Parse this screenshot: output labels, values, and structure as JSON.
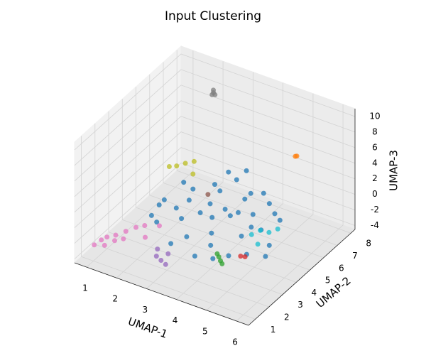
{
  "chart_data": {
    "type": "scatter3d",
    "title": "Input Clustering",
    "xlabel": "UMAP-1",
    "ylabel": "UMAP-2",
    "zlabel": "UMAP-3",
    "xlim": [
      0.6,
      6.4
    ],
    "ylim": [
      0.5,
      8.3
    ],
    "zlim": [
      -4.5,
      11
    ],
    "xticks": [
      1,
      2,
      3,
      4,
      5,
      6
    ],
    "yticks": [
      1,
      2,
      3,
      4,
      5,
      6,
      7,
      8
    ],
    "zticks": [
      -4,
      -2,
      0,
      2,
      4,
      6,
      8,
      10
    ],
    "grid": true,
    "series": [
      {
        "color": "#1f77b4",
        "x": [
          2.0,
          2.5,
          3.0,
          3.5,
          4.0,
          4.5,
          5.0,
          5.5,
          2.2,
          2.8,
          3.2,
          3.8,
          4.2,
          4.8,
          5.2,
          1.8,
          2.6,
          3.4,
          4.4,
          5.4,
          3.0,
          3.6,
          4.0,
          4.6,
          2.4,
          3.2,
          3.8,
          4.2,
          5.0,
          1.6,
          2.9,
          3.7,
          4.3,
          5.6,
          3.3,
          4.1,
          2.1,
          4.9,
          3.5,
          4.5
        ],
        "y": [
          4.0,
          5.0,
          5.5,
          6.0,
          5.5,
          5.0,
          4.5,
          4.0,
          3.0,
          3.5,
          4.0,
          4.5,
          4.0,
          3.5,
          3.0,
          3.5,
          4.5,
          5.0,
          6.0,
          5.0,
          6.5,
          6.5,
          3.0,
          3.0,
          4.0,
          3.0,
          3.5,
          5.5,
          5.5,
          4.5,
          2.5,
          2.5,
          2.5,
          3.5,
          4.5,
          4.8,
          5.2,
          4.0,
          4.2,
          6.2
        ],
        "z": [
          0.0,
          0.5,
          1.0,
          1.5,
          0.5,
          0.0,
          -0.5,
          -1.0,
          -1.0,
          -0.5,
          0.0,
          0.5,
          1.0,
          0.0,
          -1.0,
          -1.5,
          0.0,
          1.5,
          1.0,
          0.5,
          1.0,
          2.0,
          -1.5,
          -2.0,
          -0.5,
          -1.5,
          -1.0,
          1.5,
          0.0,
          -2.0,
          -2.0,
          -2.5,
          -2.0,
          -1.5,
          0.5,
          0.0,
          0.5,
          0.5,
          -0.5,
          -0.5
        ]
      },
      {
        "color": "#ff7f0e",
        "x": [
          5.0,
          5.05
        ],
        "y": [
          7.0,
          7.0
        ],
        "z": [
          5.0,
          5.1
        ]
      },
      {
        "color": "#2ca02c",
        "x": [
          4.5,
          4.6,
          4.4,
          4.7
        ],
        "y": [
          2.5,
          2.4,
          2.6,
          2.3
        ],
        "z": [
          -1.5,
          -1.7,
          -1.4,
          -1.8
        ]
      },
      {
        "color": "#d62728",
        "x": [
          5.0,
          5.1
        ],
        "y": [
          3.0,
          3.1
        ],
        "z": [
          -1.5,
          -1.6
        ]
      },
      {
        "color": "#9467bd",
        "x": [
          2.8,
          2.6,
          3.0,
          2.9,
          2.5
        ],
        "y": [
          2.0,
          2.1,
          1.9,
          2.3,
          2.4
        ],
        "z": [
          -3.5,
          -3.4,
          -3.6,
          -3.0,
          -3.1
        ]
      },
      {
        "color": "#8c564b",
        "x": [
          3.0
        ],
        "y": [
          5.0
        ],
        "z": [
          0.5
        ]
      },
      {
        "color": "#e377c2",
        "x": [
          1.0,
          1.2,
          0.9,
          1.4,
          1.6,
          1.8,
          1.1,
          1.3,
          2.0,
          2.2,
          1.5,
          0.8
        ],
        "y": [
          2.0,
          2.2,
          1.8,
          2.5,
          2.8,
          3.0,
          1.6,
          1.9,
          2.6,
          3.2,
          2.1,
          1.5
        ],
        "z": [
          -3.0,
          -2.8,
          -3.2,
          -2.5,
          -2.2,
          -2.0,
          -3.3,
          -2.9,
          -2.6,
          -1.8,
          -2.7,
          -3.5
        ]
      },
      {
        "color": "#7f7f7f",
        "x": [
          2.5,
          2.55,
          2.45,
          2.5
        ],
        "y": [
          6.5,
          6.5,
          6.6,
          6.4
        ],
        "z": [
          10.5,
          10.3,
          10.6,
          10.4
        ]
      },
      {
        "color": "#bcbd22",
        "x": [
          1.5,
          1.7,
          1.3,
          1.9,
          2.0
        ],
        "y": [
          6.0,
          6.2,
          5.9,
          6.4,
          6.1
        ],
        "z": [
          0.5,
          0.8,
          0.3,
          1.0,
          0.0
        ]
      },
      {
        "color": "#17becf",
        "x": [
          5.2,
          5.4,
          5.0,
          5.6,
          5.3
        ],
        "y": [
          4.0,
          4.2,
          3.8,
          4.4,
          3.6
        ],
        "z": [
          0.5,
          0.2,
          0.0,
          0.6,
          -0.5
        ]
      }
    ]
  }
}
